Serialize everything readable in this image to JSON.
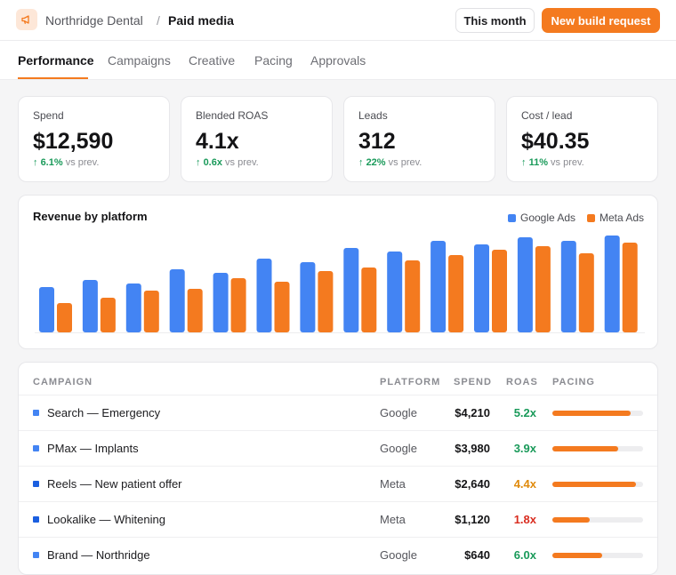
{
  "header": {
    "client": "Northridge Dental",
    "separator": "/",
    "section": "Paid media",
    "period_button": "This month",
    "cta_button": "New build request",
    "logo_icon": "megaphone-icon"
  },
  "tabs": [
    {
      "label": "Performance",
      "active": true
    },
    {
      "label": "Campaigns",
      "active": false
    },
    {
      "label": "Creative",
      "active": false
    },
    {
      "label": "Pacing",
      "active": false
    },
    {
      "label": "Approvals",
      "active": false
    }
  ],
  "kpis": [
    {
      "label": "Spend",
      "value": "$12,590",
      "delta": "6.1%",
      "delta_suffix": "vs prev.",
      "arrow": "↑"
    },
    {
      "label": "Blended ROAS",
      "value": "4.1x",
      "delta": "0.6x",
      "delta_suffix": "vs prev.",
      "arrow": "↑"
    },
    {
      "label": "Leads",
      "value": "312",
      "delta": "22%",
      "delta_suffix": "vs prev.",
      "arrow": "↑"
    },
    {
      "label": "Cost / lead",
      "value": "$40.35",
      "delta": "11%",
      "delta_suffix": "vs prev.",
      "arrow": "↑"
    }
  ],
  "colors": {
    "accent": "#f47a1f",
    "google": "#4384f3",
    "meta": "#f47a1f",
    "roas_good": "#1a9a5a",
    "roas_mid": "#e08a0b",
    "roas_bad": "#d92d20"
  },
  "chart_data": {
    "type": "bar",
    "title": "Revenue by platform",
    "series": [
      {
        "name": "Google Ads",
        "values": [
          51,
          59,
          55,
          71,
          67,
          83,
          79,
          95,
          91,
          103,
          99,
          107,
          103,
          109
        ]
      },
      {
        "name": "Meta Ads",
        "values": [
          33,
          39,
          47,
          49,
          61,
          57,
          69,
          73,
          81,
          87,
          93,
          97,
          89,
          101
        ]
      }
    ],
    "legend": "top-right",
    "grid": false
  },
  "table": {
    "headers": {
      "campaign": "CAMPAIGN",
      "platform": "PLATFORM",
      "spend": "SPEND",
      "roas": "ROAS",
      "pacing": "PACING"
    },
    "rows": [
      {
        "name": "Search — Emergency",
        "platform": "Google",
        "spend": "$4,210",
        "roas": "5.2x",
        "roas_level": "good",
        "pacing": 0.86,
        "dot": "#4384f3"
      },
      {
        "name": "PMax — Implants",
        "platform": "Google",
        "spend": "$3,980",
        "roas": "3.9x",
        "roas_level": "good",
        "pacing": 0.73,
        "dot": "#4384f3"
      },
      {
        "name": "Reels — New patient offer",
        "platform": "Meta",
        "spend": "$2,640",
        "roas": "4.4x",
        "roas_level": "mid",
        "pacing": 0.92,
        "dot": "#1b5fe0"
      },
      {
        "name": "Lookalike — Whitening",
        "platform": "Meta",
        "spend": "$1,120",
        "roas": "1.8x",
        "roas_level": "bad",
        "pacing": 0.41,
        "dot": "#1b5fe0"
      },
      {
        "name": "Brand — Northridge",
        "platform": "Google",
        "spend": "$640",
        "roas": "6.0x",
        "roas_level": "good",
        "pacing": 0.55,
        "dot": "#4384f3"
      }
    ]
  }
}
